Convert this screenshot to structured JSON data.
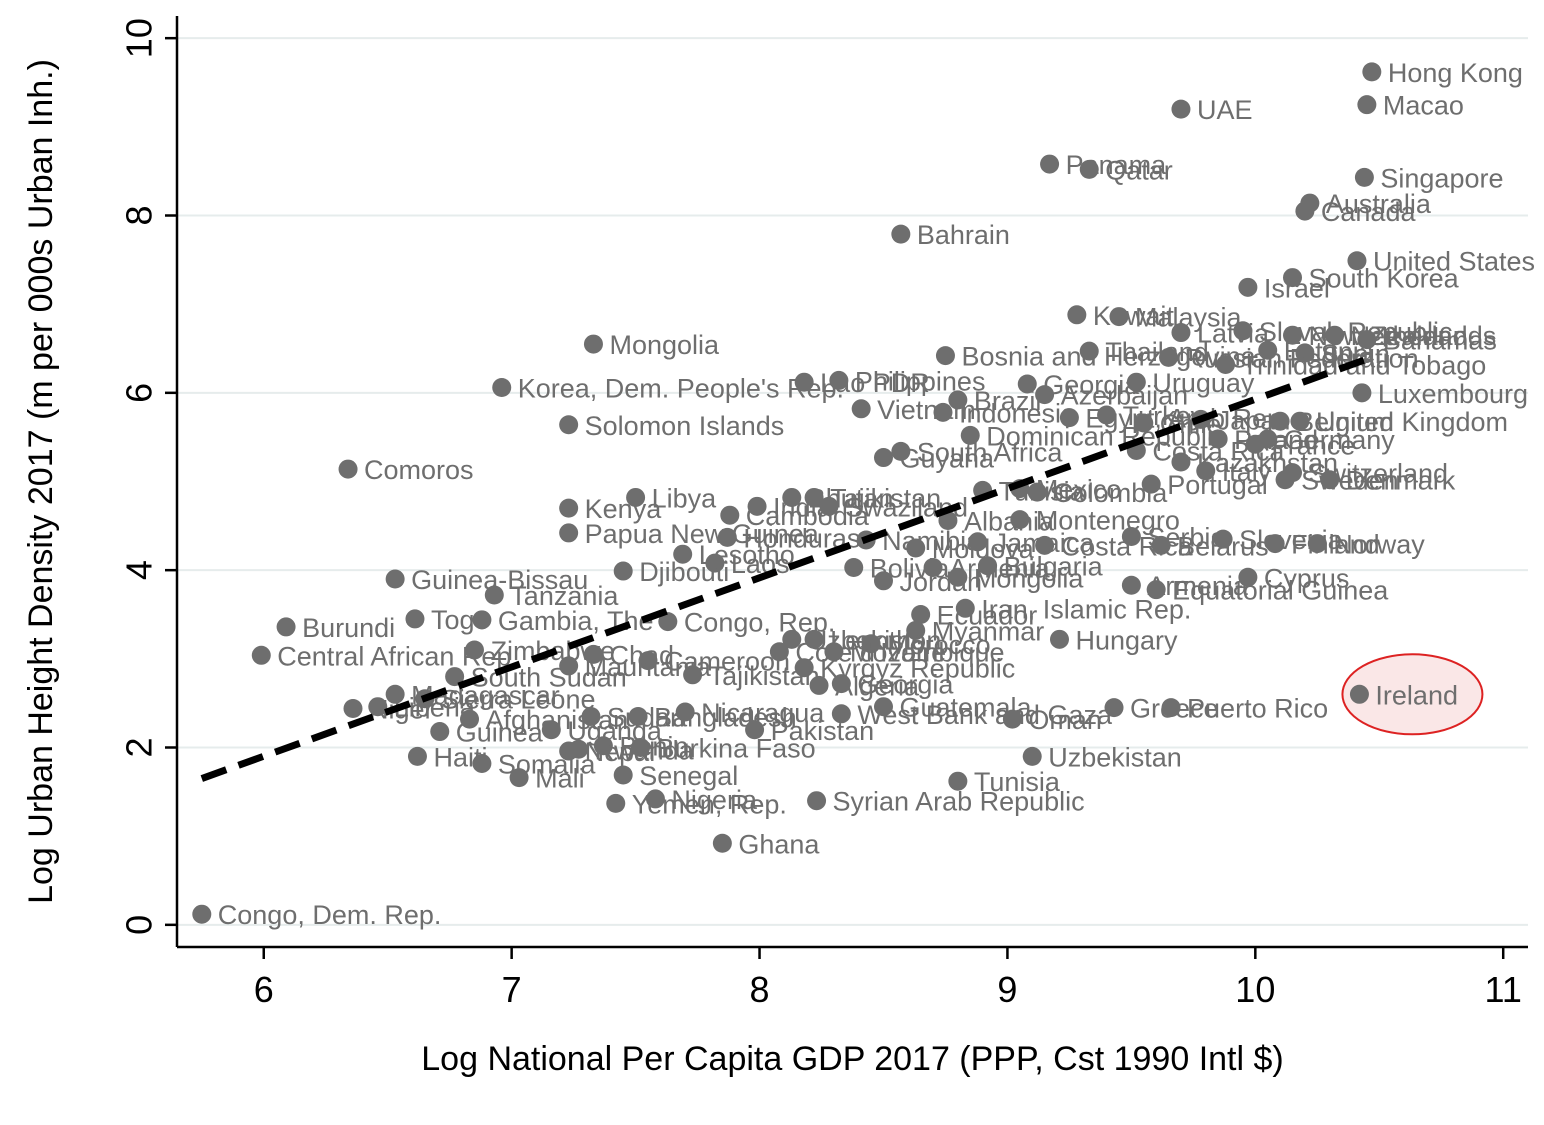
{
  "chart_data": {
    "type": "scatter",
    "xlabel": "Log National Per Capita GDP 2017 (PPP, Cst 1990 Intl $)",
    "ylabel": "Log Urban Height Density 2017 (m per 000s Urban Inh.)",
    "xlim": [
      5.65,
      11.1
    ],
    "ylim": [
      -0.25,
      10.25
    ],
    "xticks": [
      6,
      7,
      8,
      9,
      10,
      11
    ],
    "yticks": [
      0,
      2,
      4,
      6,
      8,
      10
    ],
    "grid": "horizontal",
    "fit_line": {
      "x": [
        5.75,
        10.47
      ],
      "y": [
        1.65,
        6.4
      ],
      "style": "dashed"
    },
    "highlight": "Ireland",
    "points": [
      {
        "x": 10.47,
        "y": 9.62,
        "label": "Hong Kong"
      },
      {
        "x": 10.45,
        "y": 9.25,
        "label": "Macao"
      },
      {
        "x": 9.7,
        "y": 9.2,
        "label": "UAE"
      },
      {
        "x": 9.17,
        "y": 8.58,
        "label": "Panama"
      },
      {
        "x": 9.33,
        "y": 8.52,
        "label": "Qatar"
      },
      {
        "x": 10.44,
        "y": 8.43,
        "label": "Singapore"
      },
      {
        "x": 10.22,
        "y": 8.14,
        "label": "Australia"
      },
      {
        "x": 10.2,
        "y": 8.05,
        "label": "Canada"
      },
      {
        "x": 8.57,
        "y": 7.79,
        "label": "Bahrain"
      },
      {
        "x": 10.41,
        "y": 7.49,
        "label": "United States"
      },
      {
        "x": 9.97,
        "y": 7.19,
        "label": "Israel"
      },
      {
        "x": 10.15,
        "y": 7.3,
        "label": "South Korea"
      },
      {
        "x": 9.28,
        "y": 6.88,
        "label": "Kuwait"
      },
      {
        "x": 9.45,
        "y": 6.86,
        "label": "Malaysia"
      },
      {
        "x": 9.7,
        "y": 6.68,
        "label": "Latvia"
      },
      {
        "x": 9.95,
        "y": 6.7,
        "label": "Slovak Republic"
      },
      {
        "x": 10.15,
        "y": 6.65,
        "label": "New Zealand"
      },
      {
        "x": 10.32,
        "y": 6.65,
        "label": "Netherlands"
      },
      {
        "x": 10.45,
        "y": 6.6,
        "label": "Bahamas"
      },
      {
        "x": 10.05,
        "y": 6.48,
        "label": "Estonia"
      },
      {
        "x": 10.2,
        "y": 6.45,
        "label": "Spain"
      },
      {
        "x": 9.33,
        "y": 6.47,
        "label": "Thailand"
      },
      {
        "x": 9.65,
        "y": 6.4,
        "label": "Russian Federation"
      },
      {
        "x": 9.88,
        "y": 6.32,
        "label": "Trinidad and Tobago"
      },
      {
        "x": 8.75,
        "y": 6.42,
        "label": "Bosnia and Herzegovina"
      },
      {
        "x": 10.43,
        "y": 6.0,
        "label": "Luxembourg"
      },
      {
        "x": 7.33,
        "y": 6.55,
        "label": "Mongolia"
      },
      {
        "x": 6.96,
        "y": 6.06,
        "label": "Korea, Dem. People's Rep."
      },
      {
        "x": 8.18,
        "y": 6.12,
        "label": "Lao PDR"
      },
      {
        "x": 8.32,
        "y": 6.14,
        "label": "Philippines"
      },
      {
        "x": 8.41,
        "y": 5.82,
        "label": "Vietnam"
      },
      {
        "x": 9.08,
        "y": 6.1,
        "label": "Georgia"
      },
      {
        "x": 9.52,
        "y": 6.12,
        "label": "Uruguay"
      },
      {
        "x": 8.8,
        "y": 5.92,
        "label": "Brazil"
      },
      {
        "x": 8.74,
        "y": 5.78,
        "label": "Indonesia"
      },
      {
        "x": 9.15,
        "y": 5.98,
        "label": "Azerbaijan"
      },
      {
        "x": 9.25,
        "y": 5.72,
        "label": "Egypt, Arab Rep."
      },
      {
        "x": 9.4,
        "y": 5.75,
        "label": "Turkey"
      },
      {
        "x": 9.55,
        "y": 5.66,
        "label": "Chile"
      },
      {
        "x": 9.78,
        "y": 5.7,
        "label": "Japan"
      },
      {
        "x": 10.1,
        "y": 5.68,
        "label": "Belgium"
      },
      {
        "x": 10.18,
        "y": 5.68,
        "label": "United Kingdom"
      },
      {
        "x": 8.85,
        "y": 5.52,
        "label": "Dominican Republic"
      },
      {
        "x": 9.52,
        "y": 5.35,
        "label": "Costa Rica"
      },
      {
        "x": 9.85,
        "y": 5.48,
        "label": "Poland"
      },
      {
        "x": 10.05,
        "y": 5.48,
        "label": "Germany"
      },
      {
        "x": 10.0,
        "y": 5.42,
        "label": "France"
      },
      {
        "x": 7.23,
        "y": 5.64,
        "label": "Solomon Islands"
      },
      {
        "x": 8.5,
        "y": 5.27,
        "label": "Guyana"
      },
      {
        "x": 8.57,
        "y": 5.34,
        "label": "South Africa"
      },
      {
        "x": 6.34,
        "y": 5.14,
        "label": "Comoros"
      },
      {
        "x": 9.7,
        "y": 5.22,
        "label": "Kazakhstan"
      },
      {
        "x": 9.8,
        "y": 5.12,
        "label": "Italy"
      },
      {
        "x": 10.15,
        "y": 5.1,
        "label": "Switzerland"
      },
      {
        "x": 10.12,
        "y": 5.02,
        "label": "Sweden"
      },
      {
        "x": 10.3,
        "y": 5.02,
        "label": "Denmark"
      },
      {
        "x": 9.58,
        "y": 4.97,
        "label": "Portugal"
      },
      {
        "x": 7.23,
        "y": 4.7,
        "label": "Kenya"
      },
      {
        "x": 7.5,
        "y": 4.82,
        "label": "Libya"
      },
      {
        "x": 7.88,
        "y": 4.62,
        "label": "Cambodia"
      },
      {
        "x": 7.99,
        "y": 4.72,
        "label": "India"
      },
      {
        "x": 8.13,
        "y": 4.82,
        "label": "Bhutan"
      },
      {
        "x": 8.22,
        "y": 4.82,
        "label": "Tajikistan"
      },
      {
        "x": 8.28,
        "y": 4.72,
        "label": "Swaziland"
      },
      {
        "x": 8.9,
        "y": 4.9,
        "label": "Tunisia"
      },
      {
        "x": 9.05,
        "y": 4.92,
        "label": "Mexico"
      },
      {
        "x": 9.12,
        "y": 4.88,
        "label": "Colombia"
      },
      {
        "x": 8.76,
        "y": 4.56,
        "label": "Albania"
      },
      {
        "x": 9.05,
        "y": 4.57,
        "label": "Montenegro"
      },
      {
        "x": 7.23,
        "y": 4.42,
        "label": "Papua New Guinea"
      },
      {
        "x": 7.87,
        "y": 4.37,
        "label": "Honduras"
      },
      {
        "x": 8.43,
        "y": 4.34,
        "label": "Namibia"
      },
      {
        "x": 8.63,
        "y": 4.25,
        "label": "Moldova"
      },
      {
        "x": 8.88,
        "y": 4.32,
        "label": "Jamaica"
      },
      {
        "x": 9.15,
        "y": 4.28,
        "label": "Costa Rica"
      },
      {
        "x": 9.5,
        "y": 4.38,
        "label": "Serbia"
      },
      {
        "x": 9.62,
        "y": 4.28,
        "label": "Belarus"
      },
      {
        "x": 9.87,
        "y": 4.35,
        "label": "Slovenia"
      },
      {
        "x": 10.08,
        "y": 4.3,
        "label": "Finland"
      },
      {
        "x": 10.25,
        "y": 4.3,
        "label": "Norway"
      },
      {
        "x": 7.69,
        "y": 4.18,
        "label": "Lesotho"
      },
      {
        "x": 7.82,
        "y": 4.08,
        "label": "Laos"
      },
      {
        "x": 8.38,
        "y": 4.03,
        "label": "Bolivia"
      },
      {
        "x": 8.7,
        "y": 4.03,
        "label": "Armenia"
      },
      {
        "x": 8.92,
        "y": 4.05,
        "label": "Bulgaria"
      },
      {
        "x": 6.53,
        "y": 3.9,
        "label": "Guinea-Bissau"
      },
      {
        "x": 7.45,
        "y": 3.99,
        "label": "Djibouti"
      },
      {
        "x": 8.5,
        "y": 3.88,
        "label": "Jordan"
      },
      {
        "x": 8.8,
        "y": 3.92,
        "label": "Mongolia"
      },
      {
        "x": 6.93,
        "y": 3.72,
        "label": "Tanzania"
      },
      {
        "x": 9.5,
        "y": 3.83,
        "label": "Armenia"
      },
      {
        "x": 9.6,
        "y": 3.78,
        "label": "Equatorial Guinea"
      },
      {
        "x": 9.97,
        "y": 3.92,
        "label": "Cyprus"
      },
      {
        "x": 8.65,
        "y": 3.5,
        "label": "Ecuador"
      },
      {
        "x": 8.83,
        "y": 3.57,
        "label": "Iran, Islamic Rep."
      },
      {
        "x": 6.61,
        "y": 3.45,
        "label": "Togo"
      },
      {
        "x": 6.88,
        "y": 3.44,
        "label": "Gambia, The"
      },
      {
        "x": 7.63,
        "y": 3.42,
        "label": "Congo, Rep."
      },
      {
        "x": 6.09,
        "y": 3.36,
        "label": "Burundi"
      },
      {
        "x": 8.63,
        "y": 3.32,
        "label": "Myanmar"
      },
      {
        "x": 9.21,
        "y": 3.22,
        "label": "Hungary"
      },
      {
        "x": 8.13,
        "y": 3.22,
        "label": "Uzbekistan"
      },
      {
        "x": 8.22,
        "y": 3.22,
        "label": "Lesotho"
      },
      {
        "x": 8.45,
        "y": 3.17,
        "label": "Morocco"
      },
      {
        "x": 8.3,
        "y": 3.08,
        "label": "Mozambique"
      },
      {
        "x": 8.08,
        "y": 3.08,
        "label": "Cote d'Ivoire"
      },
      {
        "x": 6.85,
        "y": 3.1,
        "label": "Zimbabwe"
      },
      {
        "x": 7.33,
        "y": 3.05,
        "label": "Chad"
      },
      {
        "x": 7.55,
        "y": 2.98,
        "label": "Cameroon"
      },
      {
        "x": 5.99,
        "y": 3.04,
        "label": "Central African Rep."
      },
      {
        "x": 7.23,
        "y": 2.92,
        "label": "Mauritania"
      },
      {
        "x": 8.18,
        "y": 2.9,
        "label": "Kyrgyz Republic"
      },
      {
        "x": 7.73,
        "y": 2.82,
        "label": "Tajikistan"
      },
      {
        "x": 6.77,
        "y": 2.8,
        "label": "South Sudan"
      },
      {
        "x": 8.24,
        "y": 2.7,
        "label": "Algeria"
      },
      {
        "x": 8.33,
        "y": 2.72,
        "label": "Georgia"
      },
      {
        "x": 6.53,
        "y": 2.6,
        "label": "Madagascar"
      },
      {
        "x": 6.65,
        "y": 2.55,
        "label": "Sierra Leone"
      },
      {
        "x": 6.36,
        "y": 2.44,
        "label": "Niger"
      },
      {
        "x": 6.46,
        "y": 2.46,
        "label": "Liberia"
      },
      {
        "x": 6.83,
        "y": 2.32,
        "label": "Afghanistan"
      },
      {
        "x": 6.71,
        "y": 2.18,
        "label": "Guinea"
      },
      {
        "x": 7.16,
        "y": 2.2,
        "label": "Uganda"
      },
      {
        "x": 7.32,
        "y": 2.35,
        "label": "Sudan"
      },
      {
        "x": 7.51,
        "y": 2.35,
        "label": "Bangladesh"
      },
      {
        "x": 7.7,
        "y": 2.4,
        "label": "Nicaragua"
      },
      {
        "x": 7.98,
        "y": 2.2,
        "label": "Pakistan"
      },
      {
        "x": 8.33,
        "y": 2.38,
        "label": "West Bank and Gaza"
      },
      {
        "x": 8.5,
        "y": 2.46,
        "label": "Guatemala"
      },
      {
        "x": 9.02,
        "y": 2.32,
        "label": "Oman"
      },
      {
        "x": 9.43,
        "y": 2.45,
        "label": "Greece"
      },
      {
        "x": 9.66,
        "y": 2.45,
        "label": "Puerto Rico"
      },
      {
        "x": 10.42,
        "y": 2.6,
        "label": "Ireland"
      },
      {
        "x": 6.62,
        "y": 1.9,
        "label": "Haiti"
      },
      {
        "x": 6.88,
        "y": 1.82,
        "label": "Somalia"
      },
      {
        "x": 7.03,
        "y": 1.66,
        "label": "Mali"
      },
      {
        "x": 7.23,
        "y": 1.96,
        "label": "Nepal"
      },
      {
        "x": 7.37,
        "y": 2.02,
        "label": "Benin"
      },
      {
        "x": 7.27,
        "y": 1.98,
        "label": "Rwanda"
      },
      {
        "x": 7.45,
        "y": 1.69,
        "label": "Senegal"
      },
      {
        "x": 7.52,
        "y": 2.0,
        "label": "Burkina Faso"
      },
      {
        "x": 9.1,
        "y": 1.9,
        "label": "Uzbekistan"
      },
      {
        "x": 8.8,
        "y": 1.62,
        "label": "Tunisia"
      },
      {
        "x": 7.42,
        "y": 1.37,
        "label": "Yemen, Rep."
      },
      {
        "x": 7.58,
        "y": 1.42,
        "label": "Nigeria"
      },
      {
        "x": 8.23,
        "y": 1.4,
        "label": "Syrian Arab Republic"
      },
      {
        "x": 7.85,
        "y": 0.92,
        "label": "Ghana"
      },
      {
        "x": 5.75,
        "y": 0.12,
        "label": "Congo, Dem. Rep."
      }
    ]
  }
}
